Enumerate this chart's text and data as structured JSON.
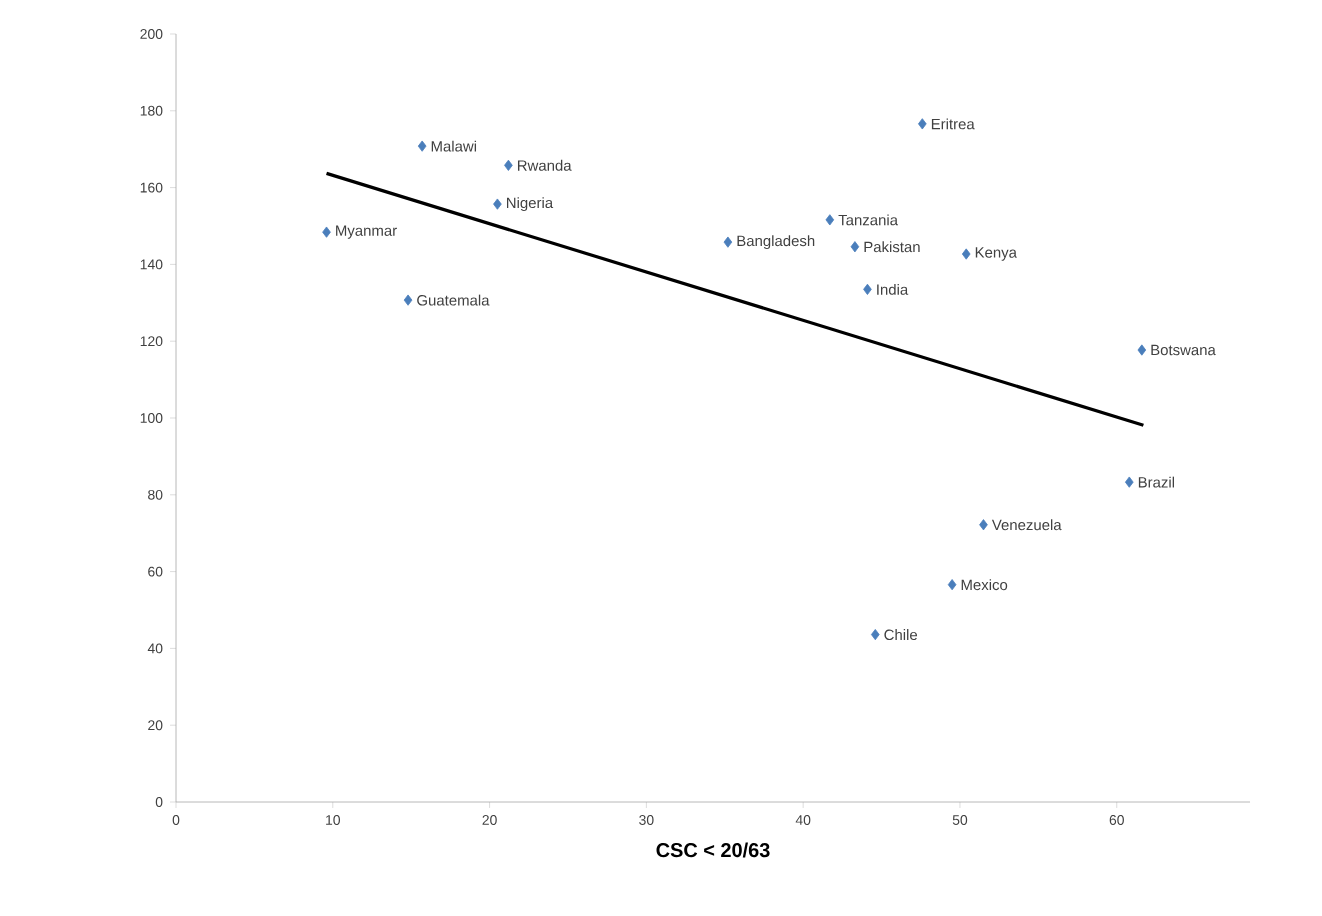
{
  "chart_data": {
    "type": "scatter",
    "xlabel": "CSC < 20/63",
    "xlim": [
      0,
      68.5
    ],
    "xticks": [
      0,
      10,
      20,
      30,
      40,
      50,
      60
    ],
    "ylim": [
      0,
      200
    ],
    "yticks": [
      0,
      20,
      40,
      60,
      80,
      100,
      120,
      140,
      160,
      180,
      200
    ],
    "grid": false,
    "marker": "diamond",
    "series": [
      {
        "color": "#4a7ebb",
        "x": [
          15.7,
          21.2,
          20.5,
          9.6,
          14.8,
          35.2,
          47.6,
          41.7,
          43.3,
          50.4,
          44.1,
          61.6,
          60.8,
          51.5,
          49.5,
          44.6
        ],
        "values": [
          170.8,
          165.8,
          155.7,
          148.4,
          130.7,
          145.8,
          176.6,
          151.6,
          144.6,
          142.7,
          133.5,
          117.7,
          83.3,
          72.2,
          56.6,
          43.6
        ]
      },
      {
        "type": "line",
        "color": "#000000",
        "marker": "none",
        "x": [
          9.6,
          61.7
        ],
        "values": [
          163.7,
          98.1
        ]
      }
    ],
    "annotations": [
      {
        "text": "Malawi",
        "x": 15.7,
        "y": 170.8
      },
      {
        "text": "Rwanda",
        "x": 21.2,
        "y": 165.8
      },
      {
        "text": "Nigeria",
        "x": 20.5,
        "y": 155.7
      },
      {
        "text": "Myanmar",
        "x": 9.6,
        "y": 148.4
      },
      {
        "text": "Guatemala",
        "x": 14.8,
        "y": 130.7
      },
      {
        "text": "Bangladesh",
        "x": 35.2,
        "y": 145.8
      },
      {
        "text": "Eritrea",
        "x": 47.6,
        "y": 176.6
      },
      {
        "text": "Tanzania",
        "x": 41.7,
        "y": 151.6
      },
      {
        "text": "Pakistan",
        "x": 43.3,
        "y": 144.6
      },
      {
        "text": "Kenya",
        "x": 50.4,
        "y": 142.7
      },
      {
        "text": "India",
        "x": 44.1,
        "y": 133.5
      },
      {
        "text": "Botswana",
        "x": 61.6,
        "y": 117.7
      },
      {
        "text": "Brazil",
        "x": 60.8,
        "y": 83.3
      },
      {
        "text": "Venezuela",
        "x": 51.5,
        "y": 72.2
      },
      {
        "text": "Mexico",
        "x": 49.5,
        "y": 56.6
      },
      {
        "text": "Chile",
        "x": 44.6,
        "y": 43.6
      }
    ]
  }
}
